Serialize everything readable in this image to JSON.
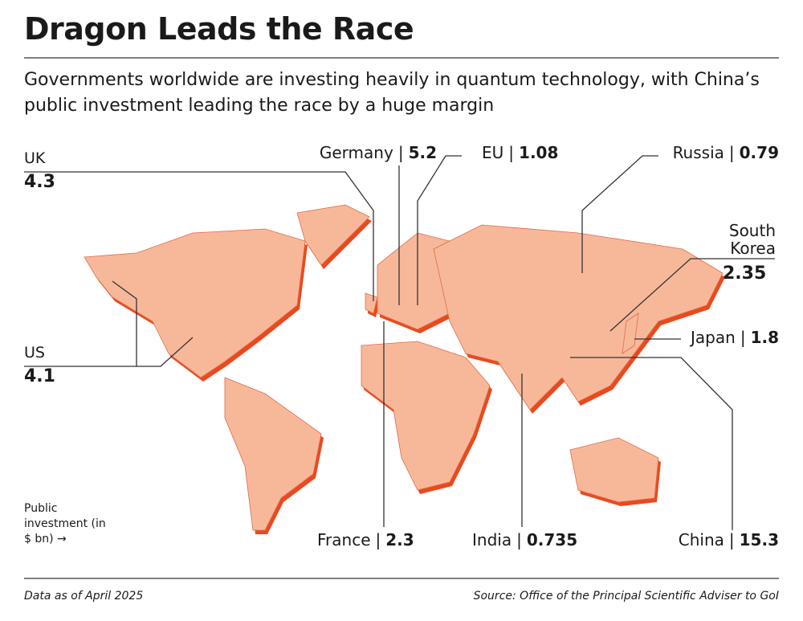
{
  "header": {
    "title": "Dragon Leads the Race",
    "subtitle": "Governments worldwide are investing heavily in quantum technology, with China’s public investment leading the race by a huge margin"
  },
  "regions": [
    {
      "name": "UK",
      "value": 4.3
    },
    {
      "name": "Germany",
      "value": 5.2
    },
    {
      "name": "EU",
      "value": 1.08
    },
    {
      "name": "Russia",
      "value": 0.79
    },
    {
      "name": "South Korea",
      "value": 2.35
    },
    {
      "name": "Japan",
      "value": 1.8
    },
    {
      "name": "US",
      "value": 4.1
    },
    {
      "name": "France",
      "value": 2.3
    },
    {
      "name": "India",
      "value": 0.735
    },
    {
      "name": "China",
      "value": 15.3
    }
  ],
  "legend": "Public investment (in $ bn) →",
  "footer": {
    "note": "Data as of April 2025",
    "source": "Source: Office of the Principal Scientific Adviser to GoI"
  }
}
